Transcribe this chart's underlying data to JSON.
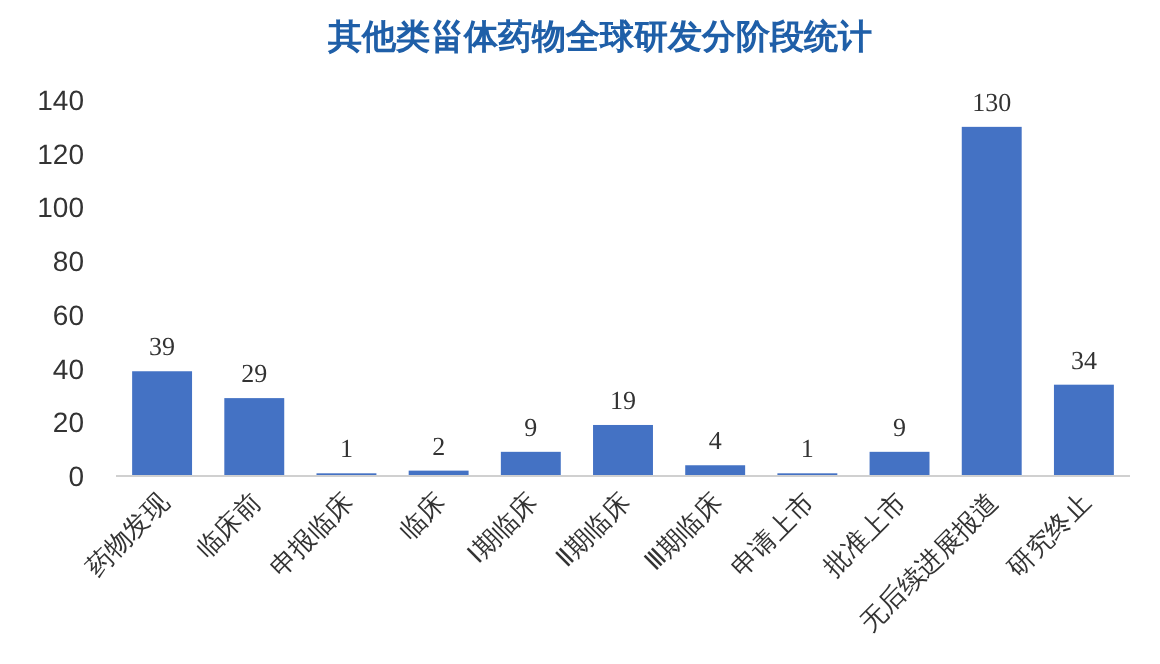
{
  "chart_data": {
    "type": "bar",
    "title": "其他类甾体药物全球研发分阶段统计",
    "categories": [
      "药物发现",
      "临床前",
      "申报临床",
      "临床",
      "Ⅰ期临床",
      "Ⅱ期临床",
      "Ⅲ期临床",
      "申请上市",
      "批准上市",
      "无后续进展报道",
      "研究终止"
    ],
    "values": [
      39,
      29,
      1,
      2,
      9,
      19,
      4,
      1,
      9,
      130,
      34
    ],
    "color": "#4472c4",
    "ylim": [
      0,
      140
    ],
    "yticks": [
      0,
      20,
      40,
      60,
      80,
      100,
      120,
      140
    ],
    "data_labels": true
  }
}
